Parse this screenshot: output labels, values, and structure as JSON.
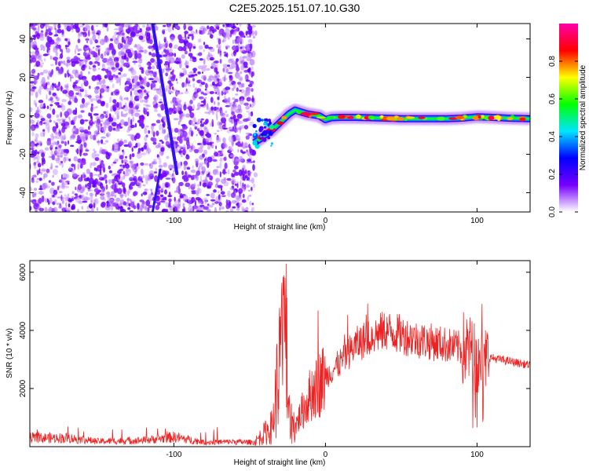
{
  "title": "C2E5.2025.151.07.10.G30",
  "chart_data": [
    {
      "type": "heatmap",
      "xlabel": "Height of straight line (km)",
      "ylabel": "Frequency (Hz)",
      "xlim": [
        -195,
        135
      ],
      "ylim": [
        -50,
        48
      ],
      "xticks": [
        -100,
        0,
        100
      ],
      "xtick_labels": [
        "-100",
        "0",
        "100"
      ],
      "yticks": [
        -40,
        -20,
        0,
        20,
        40
      ],
      "ytick_labels": [
        "-40",
        "-20",
        "0",
        "20",
        "40"
      ],
      "colorbar": {
        "label": "Normalized spectral amplitude",
        "range": [
          0,
          1
        ],
        "ticks": [
          0,
          0.2,
          0.4,
          0.6,
          0.8
        ],
        "tick_labels": [
          "0.0",
          "0.2",
          "0.4",
          "0.6",
          "0.8"
        ],
        "colormap": [
          "#ffffff",
          "#7700ff",
          "#0000ff",
          "#00e5ff",
          "#00ff00",
          "#ffff00",
          "#ff0000",
          "#ff00aa"
        ]
      },
      "noise_region_x": [
        -195,
        -47
      ],
      "diagonal_line": {
        "x_top": -114,
        "y_top": 48,
        "x_bottom": -98,
        "y_bottom": -30
      },
      "diagonal_line_2": {
        "x_top": -109,
        "y_top": -28,
        "x_bottom": -114,
        "y_bottom": -50
      },
      "ridge": {
        "x": [
          -47,
          -43,
          -40,
          -36,
          -32,
          -28,
          -24,
          -20,
          -16,
          -12,
          -8,
          -4,
          0,
          4,
          10,
          20,
          30,
          40,
          50,
          60,
          70,
          80,
          90,
          100,
          110,
          120,
          135
        ],
        "y": [
          -14,
          -12,
          -10,
          -8,
          -5,
          -2,
          1,
          3,
          2,
          1,
          0.5,
          0,
          -2,
          -1,
          -0.8,
          -0.8,
          -1,
          -1.2,
          -1.5,
          -1.5,
          -1.5,
          -1.5,
          -1.2,
          -0.5,
          -0.8,
          -1.2,
          -1.5
        ]
      }
    },
    {
      "type": "line",
      "xlabel": "Height of straight line (km)",
      "ylabel": "SNR (10 * v/v)",
      "xlim": [
        -195,
        135
      ],
      "ylim": [
        0,
        6400
      ],
      "xticks": [
        -100,
        0,
        100
      ],
      "xtick_labels": [
        "-100",
        "0",
        "100"
      ],
      "yticks": [
        2000,
        4000,
        6000
      ],
      "ytick_labels": [
        "2000",
        "4000",
        "6000"
      ],
      "color": "#ee2222",
      "envelope": {
        "x": [
          -195,
          -170,
          -150,
          -120,
          -100,
          -80,
          -60,
          -47,
          -35,
          -30,
          -27,
          -25,
          -20,
          -10,
          0,
          10,
          20,
          30,
          40,
          60,
          80,
          95,
          100,
          105,
          115,
          135
        ],
        "y": [
          300,
          300,
          180,
          220,
          330,
          150,
          170,
          150,
          700,
          3000,
          3200,
          1000,
          700,
          1800,
          2400,
          2900,
          3500,
          3800,
          4000,
          3700,
          3500,
          3300,
          2900,
          3100,
          3000,
          2800
        ]
      }
    }
  ]
}
